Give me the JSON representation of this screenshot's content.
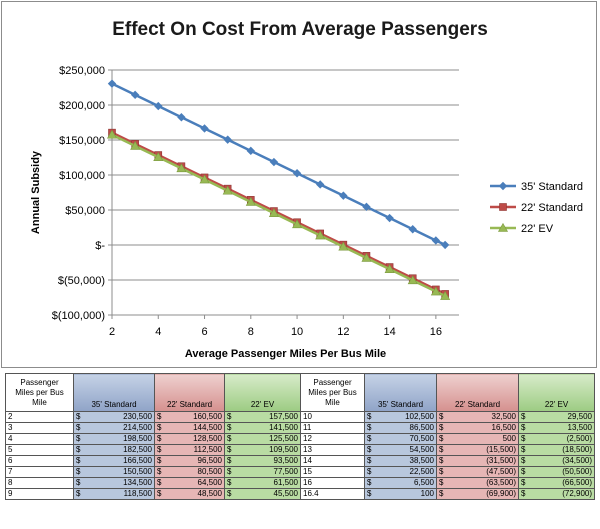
{
  "chart_data": {
    "type": "line",
    "title": "Effect On Cost From Average Passengers",
    "xlabel": "Average Passenger Miles Per Bus Mile",
    "ylabel": "Annual Subsidy",
    "xlim": [
      2,
      17
    ],
    "ylim": [
      -100000,
      250000
    ],
    "x_ticks": [
      2,
      4,
      6,
      8,
      10,
      12,
      14,
      16
    ],
    "y_ticks": [
      -100000,
      -50000,
      0,
      50000,
      100000,
      150000,
      200000,
      250000
    ],
    "y_tick_labels": [
      "$(100,000)",
      "$(50,000)",
      "$-",
      "$50,000",
      "$100,000",
      "$150,000",
      "$200,000",
      "$250,000"
    ],
    "legend_position": "right",
    "x": [
      2,
      3,
      4,
      5,
      6,
      7,
      8,
      9,
      10,
      11,
      12,
      13,
      14,
      15,
      16,
      16.4
    ],
    "series": [
      {
        "name": "35' Standard",
        "color": "#4a7ebb",
        "marker": "diamond",
        "values": [
          230500,
          214500,
          198500,
          182500,
          166500,
          150500,
          134500,
          118500,
          102500,
          86500,
          70500,
          54500,
          38500,
          22500,
          6500,
          100
        ]
      },
      {
        "name": "22' Standard",
        "color": "#be4b48",
        "marker": "square",
        "values": [
          160500,
          144500,
          128500,
          112500,
          96500,
          80500,
          64500,
          48500,
          32500,
          16500,
          500,
          -15500,
          -31500,
          -47500,
          -63500,
          -69900
        ]
      },
      {
        "name": "22' EV",
        "color": "#98b954",
        "marker": "triangle",
        "values": [
          157500,
          141500,
          125500,
          109500,
          93500,
          77500,
          61500,
          45500,
          29500,
          13500,
          -2500,
          -18500,
          -34500,
          -50500,
          -66500,
          -72900
        ]
      }
    ]
  },
  "table": {
    "headers": {
      "miles": [
        "Passenger",
        "Miles per Bus",
        "Mile"
      ],
      "std": "35' Standard",
      "r22": "22' Standard",
      "ev": "22' EV"
    },
    "currency": "$",
    "left_rows": [
      {
        "miles": "2",
        "std": "230,500",
        "r22": "160,500",
        "ev": "157,500"
      },
      {
        "miles": "3",
        "std": "214,500",
        "r22": "144,500",
        "ev": "141,500"
      },
      {
        "miles": "4",
        "std": "198,500",
        "r22": "128,500",
        "ev": "125,500"
      },
      {
        "miles": "5",
        "std": "182,500",
        "r22": "112,500",
        "ev": "109,500"
      },
      {
        "miles": "6",
        "std": "166,500",
        "r22": "96,500",
        "ev": "93,500"
      },
      {
        "miles": "7",
        "std": "150,500",
        "r22": "80,500",
        "ev": "77,500"
      },
      {
        "miles": "8",
        "std": "134,500",
        "r22": "64,500",
        "ev": "61,500"
      },
      {
        "miles": "9",
        "std": "118,500",
        "r22": "48,500",
        "ev": "45,500"
      }
    ],
    "right_rows": [
      {
        "miles": "10",
        "std": "102,500",
        "r22": "32,500",
        "ev": "29,500"
      },
      {
        "miles": "11",
        "std": "86,500",
        "r22": "16,500",
        "ev": "13,500"
      },
      {
        "miles": "12",
        "std": "70,500",
        "r22": "500",
        "ev": "(2,500)"
      },
      {
        "miles": "13",
        "std": "54,500",
        "r22": "(15,500)",
        "ev": "(18,500)"
      },
      {
        "miles": "14",
        "std": "38,500",
        "r22": "(31,500)",
        "ev": "(34,500)"
      },
      {
        "miles": "15",
        "std": "22,500",
        "r22": "(47,500)",
        "ev": "(50,500)"
      },
      {
        "miles": "16",
        "std": "6,500",
        "r22": "(63,500)",
        "ev": "(66,500)"
      },
      {
        "miles": "16.4",
        "std": "100",
        "r22": "(69,900)",
        "ev": "(72,900)"
      }
    ]
  }
}
